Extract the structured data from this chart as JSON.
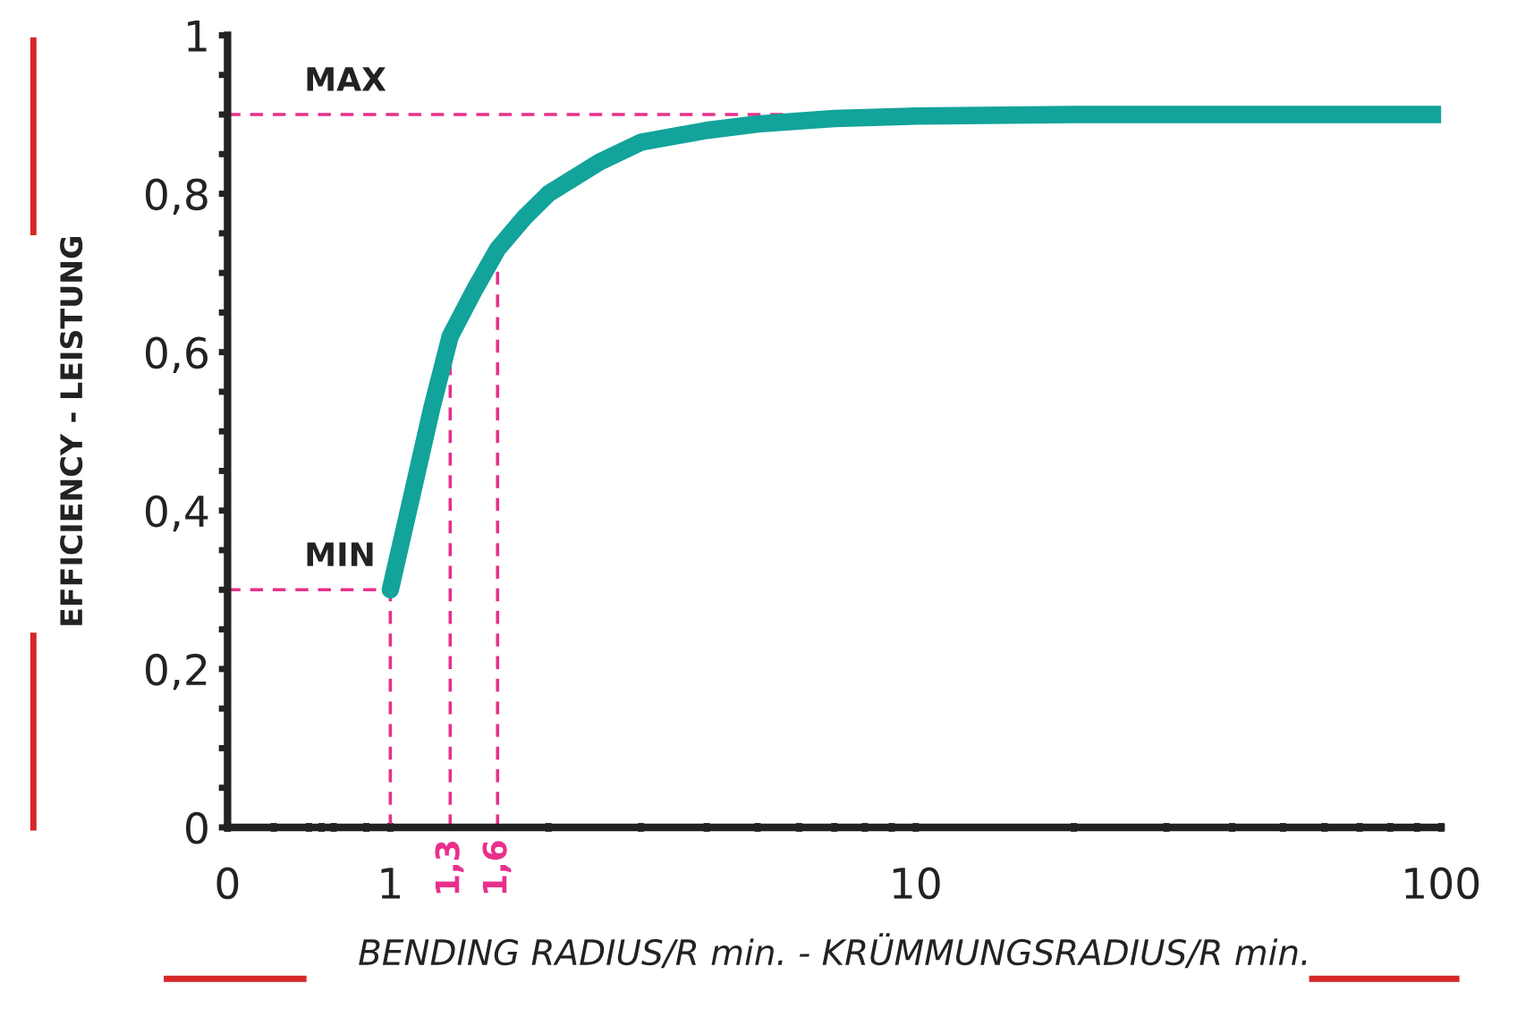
{
  "chart_data": {
    "type": "line",
    "xlabel": "BENDING RADIUS/R min. - KRÜMMUNGSRADIUS/R min.",
    "ylabel": "EFFICIENCY - LEISTUNG",
    "log": "x",
    "x": [
      1,
      1.1,
      1.2,
      1.3,
      1.45,
      1.6,
      1.8,
      2,
      2.5,
      3,
      4,
      5,
      7,
      10,
      20,
      50,
      100
    ],
    "series": [
      {
        "color": "#12a39b",
        "values": [
          0.3,
          0.42,
          0.53,
          0.62,
          0.68,
          0.73,
          0.77,
          0.8,
          0.84,
          0.865,
          0.88,
          0.888,
          0.895,
          0.898,
          0.9,
          0.9,
          0.9
        ]
      }
    ],
    "xlim": [
      0.49,
      100
    ],
    "xticks": [
      {
        "value": 0.49,
        "label": "0"
      },
      {
        "value": 0.6,
        "label": null
      },
      {
        "value": 0.7,
        "label": null
      },
      {
        "value": 0.74,
        "label": null
      },
      {
        "value": 0.78,
        "label": null
      },
      {
        "value": 0.9,
        "label": null
      },
      1,
      {
        "value": 2,
        "label": null
      },
      {
        "value": 3,
        "label": null
      },
      {
        "value": 4,
        "label": null
      },
      {
        "value": 5,
        "label": null
      },
      {
        "value": 6,
        "label": null
      },
      {
        "value": 7,
        "label": null
      },
      {
        "value": 8,
        "label": null
      },
      {
        "value": 9,
        "label": null
      },
      10,
      {
        "value": 20,
        "label": null
      },
      {
        "value": 30,
        "label": null
      },
      {
        "value": 40,
        "label": null
      },
      {
        "value": 50,
        "label": null
      },
      {
        "value": 60,
        "label": null
      },
      {
        "value": 70,
        "label": null
      },
      {
        "value": 80,
        "label": null
      },
      {
        "value": 90,
        "label": null
      },
      100
    ],
    "ylim": [
      0,
      1
    ],
    "yticks": [
      0,
      {
        "value": 0.05,
        "label": null
      },
      {
        "value": 0.1,
        "label": null
      },
      {
        "value": 0.15,
        "label": null
      },
      {
        "value": 0.2,
        "label": "0,2"
      },
      {
        "value": 0.25,
        "label": null
      },
      {
        "value": 0.3,
        "label": null
      },
      {
        "value": 0.35,
        "label": null
      },
      {
        "value": 0.4,
        "label": "0,4"
      },
      {
        "value": 0.45,
        "label": null
      },
      {
        "value": 0.5,
        "label": null
      },
      {
        "value": 0.55,
        "label": null
      },
      {
        "value": 0.6,
        "label": "0,6"
      },
      {
        "value": 0.65,
        "label": null
      },
      {
        "value": 0.7,
        "label": null
      },
      {
        "value": 0.75,
        "label": null
      },
      {
        "value": 0.8,
        "label": "0,8"
      },
      {
        "value": 0.85,
        "label": null
      },
      {
        "value": 0.9,
        "label": null
      },
      {
        "value": 0.95,
        "label": null
      },
      1
    ],
    "grid": false,
    "line_style": "solid",
    "marker": "none",
    "ref_lines": [
      {
        "axis": "y",
        "value": 0.9,
        "label": "MAX",
        "color": "#e8308a",
        "line_style": "dashed"
      },
      {
        "axis": "y",
        "value": 0.3,
        "label": "MIN",
        "color": "#e8308a",
        "line_style": "dashed"
      },
      {
        "axis": "x",
        "value": 1,
        "label": null,
        "color": "#e8308a",
        "line_style": "dashed"
      },
      {
        "axis": "x",
        "value": 1.3,
        "label": "1,3",
        "color": "#e8308a",
        "line_style": "dashed"
      },
      {
        "axis": "x",
        "value": 1.6,
        "label": "1,6",
        "color": "#e8308a",
        "line_style": "dashed"
      }
    ]
  }
}
